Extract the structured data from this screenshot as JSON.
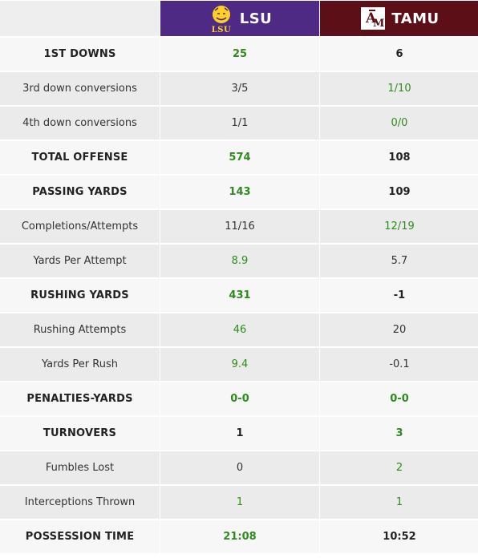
{
  "teams": {
    "home": {
      "name": "LSU",
      "logo_text": "LSU",
      "color": "#4e2a84"
    },
    "away": {
      "name": "TAMU",
      "logo_text": "ATM",
      "color": "#5c0f16"
    }
  },
  "colors": {
    "highlight": "#2e8b1e",
    "major_row": "#f7f7f7",
    "minor_row": "#ebebeb"
  },
  "rows": [
    {
      "label": "1ST DOWNS",
      "major": true,
      "lsu": "25",
      "tamu": "6",
      "highlight": "lsu"
    },
    {
      "label": "3rd down conversions",
      "major": false,
      "lsu": "3/5",
      "tamu": "1/10",
      "highlight": "tamu"
    },
    {
      "label": "4th down conversions",
      "major": false,
      "lsu": "1/1",
      "tamu": "0/0",
      "highlight": "tamu"
    },
    {
      "label": "TOTAL OFFENSE",
      "major": true,
      "lsu": "574",
      "tamu": "108",
      "highlight": "lsu"
    },
    {
      "label": "PASSING YARDS",
      "major": true,
      "lsu": "143",
      "tamu": "109",
      "highlight": "lsu"
    },
    {
      "label": "Completions/Attempts",
      "major": false,
      "lsu": "11/16",
      "tamu": "12/19",
      "highlight": "tamu"
    },
    {
      "label": "Yards Per Attempt",
      "major": false,
      "lsu": "8.9",
      "tamu": "5.7",
      "highlight": "lsu"
    },
    {
      "label": "RUSHING YARDS",
      "major": true,
      "lsu": "431",
      "tamu": "-1",
      "highlight": "lsu"
    },
    {
      "label": "Rushing Attempts",
      "major": false,
      "lsu": "46",
      "tamu": "20",
      "highlight": "lsu"
    },
    {
      "label": "Yards Per Rush",
      "major": false,
      "lsu": "9.4",
      "tamu": "-0.1",
      "highlight": "lsu"
    },
    {
      "label": "PENALTIES-YARDS",
      "major": true,
      "lsu": "0-0",
      "tamu": "0-0",
      "highlight": "both"
    },
    {
      "label": "TURNOVERS",
      "major": true,
      "lsu": "1",
      "tamu": "3",
      "highlight": "tamu"
    },
    {
      "label": "Fumbles Lost",
      "major": false,
      "lsu": "0",
      "tamu": "2",
      "highlight": "tamu"
    },
    {
      "label": "Interceptions Thrown",
      "major": false,
      "lsu": "1",
      "tamu": "1",
      "highlight": "both"
    },
    {
      "label": "POSSESSION TIME",
      "major": true,
      "lsu": "21:08",
      "tamu": "10:52",
      "highlight": "lsu"
    }
  ]
}
